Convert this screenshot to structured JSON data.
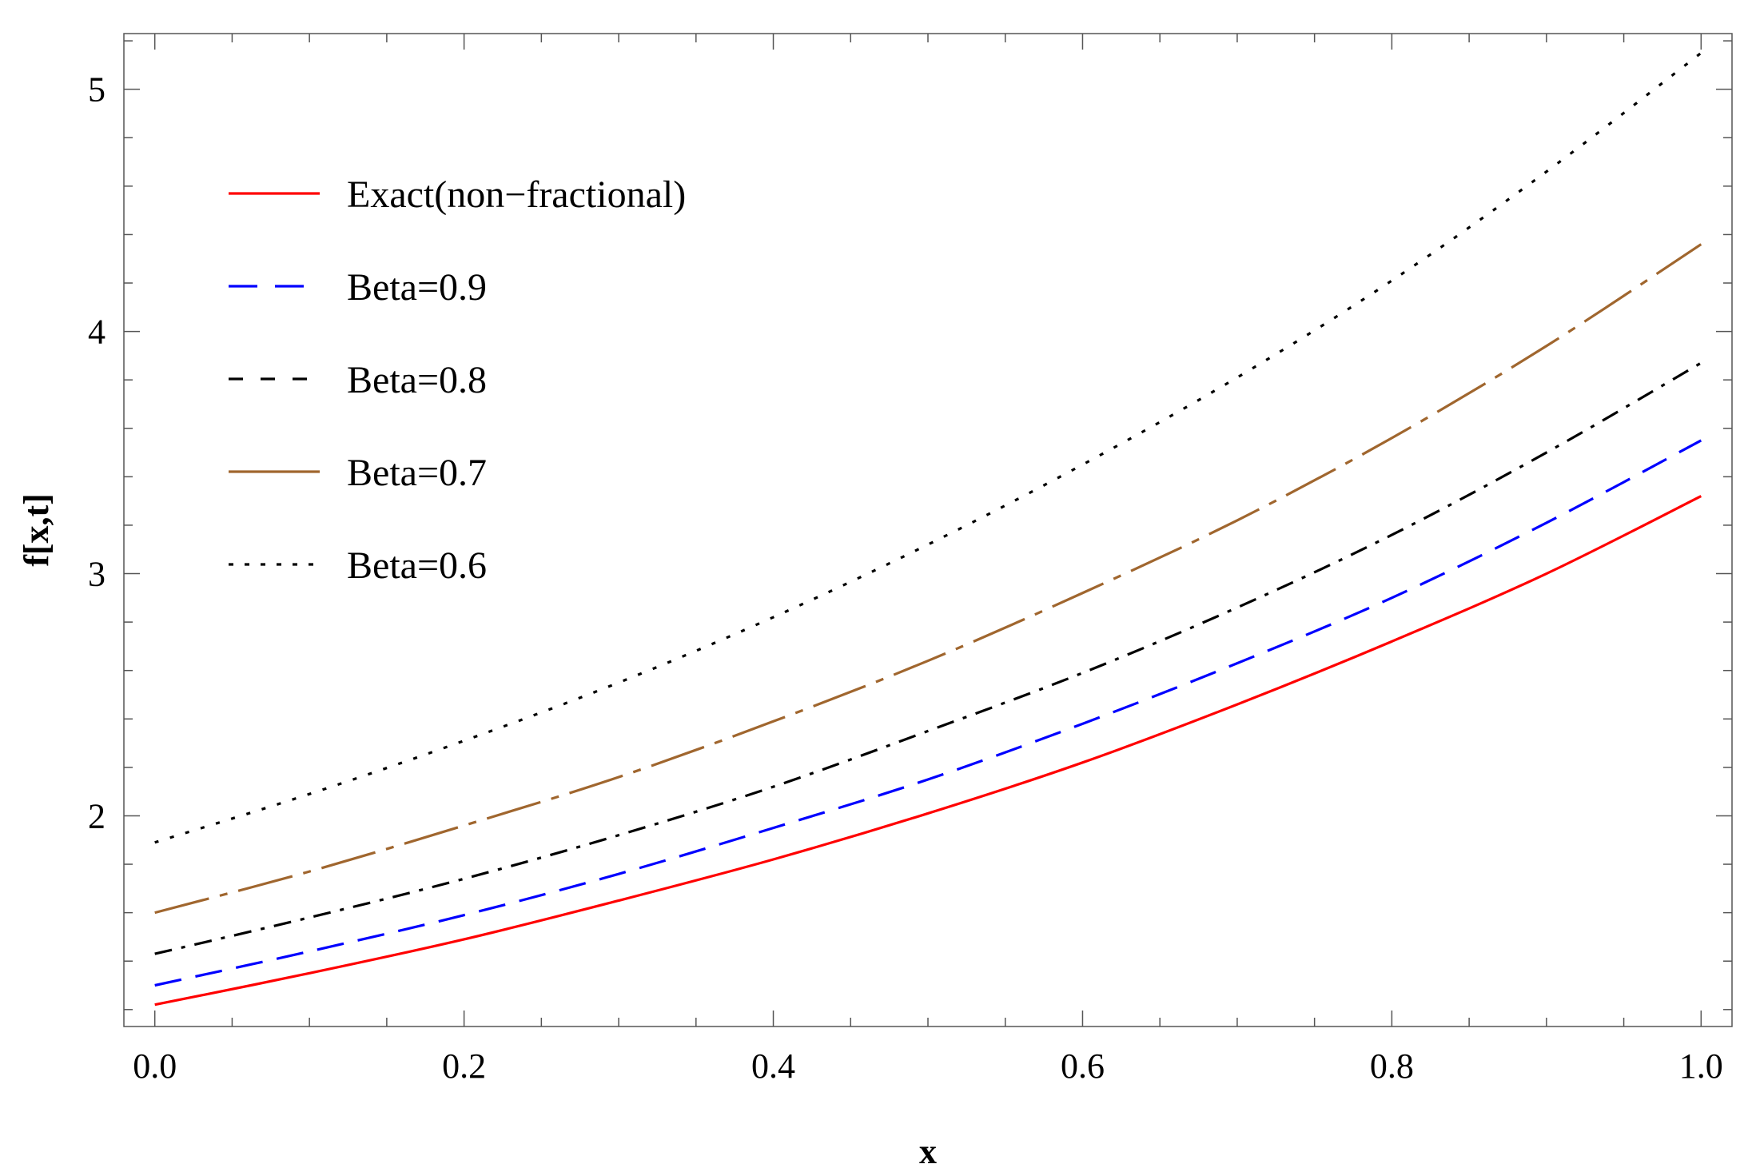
{
  "chart_data": {
    "type": "line",
    "title": "",
    "xlabel": "x",
    "ylabel": "f[x,t]",
    "xlim": [
      -0.02,
      1.02
    ],
    "ylim": [
      1.13,
      5.23
    ],
    "xticks": [
      {
        "value": 0.0,
        "label": "0.0"
      },
      {
        "value": 0.2,
        "label": "0.2"
      },
      {
        "value": 0.4,
        "label": "0.4"
      },
      {
        "value": 0.6,
        "label": "0.6"
      },
      {
        "value": 0.8,
        "label": "0.8"
      },
      {
        "value": 1.0,
        "label": "1.0"
      }
    ],
    "yticks": [
      {
        "value": 2,
        "label": "2"
      },
      {
        "value": 3,
        "label": "3"
      },
      {
        "value": 4,
        "label": "4"
      },
      {
        "value": 5,
        "label": "5"
      }
    ],
    "x": [
      0.0,
      0.1,
      0.2,
      0.3,
      0.4,
      0.5,
      0.6,
      0.7,
      0.8,
      0.9,
      1.0
    ],
    "series": [
      {
        "name": "Exact(non−fractional)",
        "color": "#ff0000",
        "style": "solid",
        "values": [
          1.22,
          1.35,
          1.49,
          1.65,
          1.82,
          2.01,
          2.22,
          2.46,
          2.72,
          3.0,
          3.32
        ]
      },
      {
        "name": "Beta=0.9",
        "color": "#0000ff",
        "style": "dashed",
        "values": [
          1.3,
          1.44,
          1.59,
          1.76,
          1.95,
          2.15,
          2.38,
          2.63,
          2.9,
          3.21,
          3.55
        ]
      },
      {
        "name": "Beta=0.8",
        "color": "#000000",
        "style": "dashdot",
        "values": [
          1.43,
          1.58,
          1.74,
          1.92,
          2.12,
          2.35,
          2.59,
          2.86,
          3.16,
          3.5,
          3.87
        ]
      },
      {
        "name": "Beta=0.7",
        "color": "#a0662e",
        "style": "longdashdot",
        "values": [
          1.6,
          1.77,
          1.96,
          2.16,
          2.39,
          2.64,
          2.92,
          3.22,
          3.56,
          3.94,
          4.36
        ]
      },
      {
        "name": "Beta=0.6",
        "color": "#000000",
        "style": "dotted",
        "values": [
          1.89,
          2.09,
          2.31,
          2.55,
          2.82,
          3.12,
          3.45,
          3.81,
          4.21,
          4.66,
          5.15
        ]
      }
    ],
    "legend_position": "top-left",
    "grid": false
  }
}
